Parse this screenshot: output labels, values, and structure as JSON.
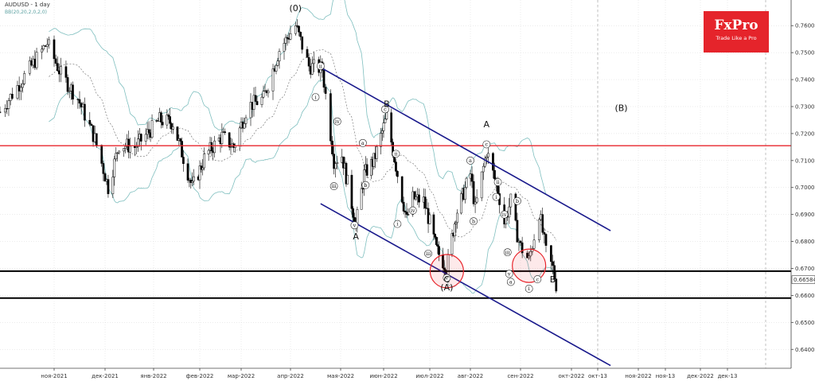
{
  "header": {
    "symbol_label": "AUDUSD - 1 day",
    "indicator_label": "BB(20,20,2,0,2,0)"
  },
  "logo": {
    "brand": "FxPro",
    "tagline": "Trade Like a Pro"
  },
  "colors": {
    "candle": "#000000",
    "bollinger": "#7fbfbf",
    "channel": "#1a1a8c",
    "resistance": "#e8262d",
    "support": "#000000",
    "highlight_circle": "#e8262d"
  },
  "chart_data": {
    "type": "candlestick",
    "symbol": "AUDUSD",
    "timeframe": "1 day",
    "y_axis": {
      "ylim": [
        0.633,
        0.7695
      ],
      "ticks": [
        "0.76000",
        "0.75000",
        "0.74000",
        "0.73000",
        "0.72000",
        "0.71000",
        "0.70000",
        "0.69000",
        "0.68000",
        "0.67000",
        "0.66000",
        "0.65000",
        "0.64000"
      ],
      "current_price": "0.66584"
    },
    "x_axis": {
      "ticks": [
        "ноя-2021",
        "дек-2021",
        "янв-2022",
        "фев-2022",
        "мар-2022",
        "апр-2022",
        "мая-2022",
        "июн-2022",
        "июл-2022",
        "авг-2022",
        "сен-2022",
        "окт-2022",
        "окт-13",
        "ноя-2022",
        "ноя-13",
        "дек-2022",
        "дек-13"
      ]
    },
    "horizontal_levels": [
      {
        "role": "resistance",
        "value": 0.7155
      },
      {
        "role": "support",
        "value": 0.669
      },
      {
        "role": "support",
        "value": 0.659
      }
    ],
    "channel": {
      "upper": [
        [
          "2022-04-19",
          0.7445
        ],
        [
          "2022-10-19",
          0.684
        ]
      ],
      "lower": [
        [
          "2022-04-19",
          0.694
        ],
        [
          "2022-10-19",
          0.634
        ]
      ]
    },
    "wave_labels": [
      {
        "text": "(0)",
        "date": "2022-04-04",
        "price": 0.7665
      },
      {
        "text": "A",
        "date": "2022-05-12",
        "price": 0.682
      },
      {
        "text": "B",
        "date": "2022-06-03",
        "price": 0.731
      },
      {
        "text": "C",
        "date": "2022-07-14",
        "price": 0.666
      },
      {
        "text": "(A)",
        "date": "2022-07-14",
        "price": 0.663
      },
      {
        "text": "A",
        "date": "2022-08-11",
        "price": 0.7235
      },
      {
        "text": "B",
        "date": "2022-09-20",
        "price": 0.666
      },
      {
        "text": "(B)",
        "date": "2022-10-24",
        "price": 0.7295
      }
    ],
    "sub_wave_labels": [
      {
        "text": "ii",
        "date": "2022-04-19",
        "price": 0.745
      },
      {
        "text": "i",
        "date": "2022-04-16",
        "price": 0.7335
      },
      {
        "text": "iv",
        "date": "2022-04-29",
        "price": 0.7245
      },
      {
        "text": "iii",
        "date": "2022-04-27",
        "price": 0.7005
      },
      {
        "text": "v",
        "date": "2022-05-11",
        "price": 0.686
      },
      {
        "text": "a",
        "date": "2022-05-17",
        "price": 0.7165
      },
      {
        "text": "b",
        "date": "2022-05-19",
        "price": 0.7009
      },
      {
        "text": "c",
        "date": "2022-06-02",
        "price": 0.729
      },
      {
        "text": "ii",
        "date": "2022-06-09",
        "price": 0.7125
      },
      {
        "text": "i",
        "date": "2022-06-10",
        "price": 0.6865
      },
      {
        "text": "iv",
        "date": "2022-06-20",
        "price": 0.6915
      },
      {
        "text": "iii",
        "date": "2022-06-30",
        "price": 0.6755
      },
      {
        "text": "v",
        "date": "2022-07-14",
        "price": 0.6665
      },
      {
        "text": "a",
        "date": "2022-08-01",
        "price": 0.71
      },
      {
        "text": "b",
        "date": "2022-08-03",
        "price": 0.6875
      },
      {
        "text": "c",
        "date": "2022-08-11",
        "price": 0.716
      },
      {
        "text": "ii",
        "date": "2022-08-18",
        "price": 0.702
      },
      {
        "text": "i",
        "date": "2022-08-17",
        "price": 0.6965
      },
      {
        "text": "iv",
        "date": "2022-08-22",
        "price": 0.69
      },
      {
        "text": "iii",
        "date": "2022-08-24",
        "price": 0.676
      },
      {
        "text": "v",
        "date": "2022-08-25",
        "price": 0.668
      },
      {
        "text": "a",
        "date": "2022-08-26",
        "price": 0.665
      },
      {
        "text": "b",
        "date": "2022-08-30",
        "price": 0.695
      },
      {
        "text": "i",
        "date": "2022-09-06",
        "price": 0.6625
      },
      {
        "text": "c",
        "date": "2022-09-11",
        "price": 0.666
      }
    ],
    "highlight_circles": [
      {
        "date": "2022-07-14",
        "price": 0.669
      },
      {
        "date": "2022-09-06",
        "price": 0.671
      }
    ]
  }
}
